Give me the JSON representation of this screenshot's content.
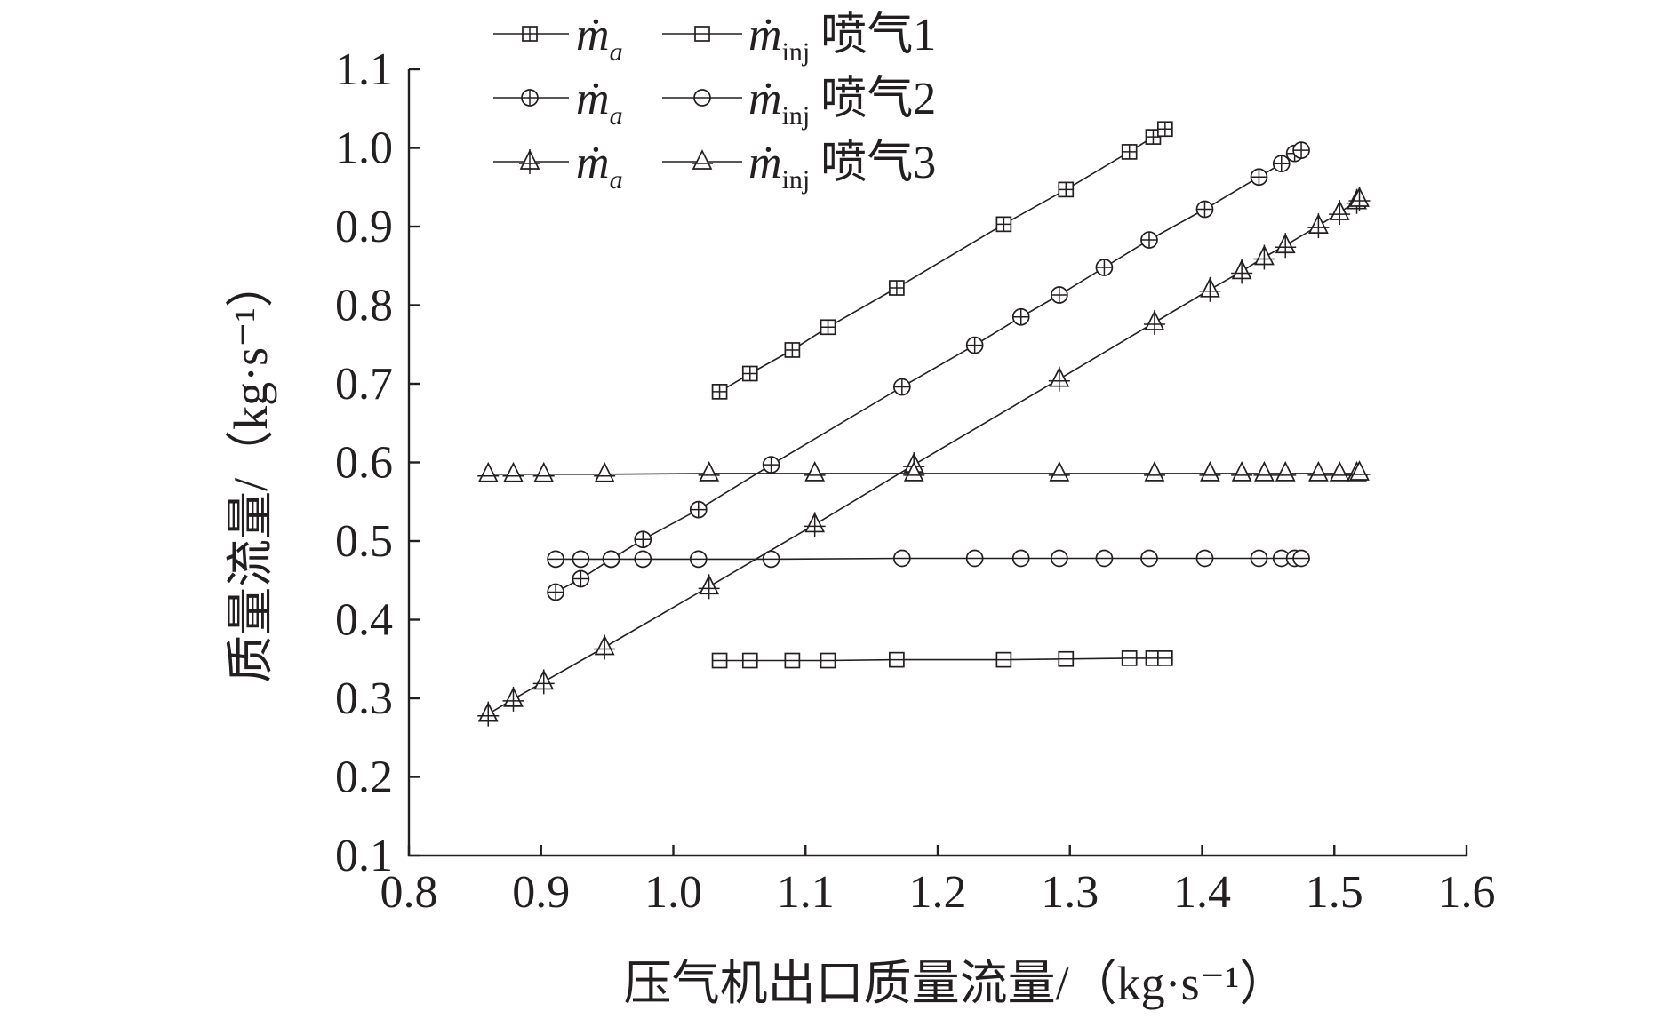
{
  "chart_data": {
    "type": "line",
    "xlabel": "压气机出口质量流量/（kg·s⁻¹）",
    "ylabel": "质量流量/（kg·s⁻¹）",
    "xlim": [
      0.8,
      1.6
    ],
    "ylim": [
      0.1,
      1.1
    ],
    "x_ticks": [
      "0.8",
      "0.9",
      "1.0",
      "1.1",
      "1.2",
      "1.3",
      "1.4",
      "1.5",
      "1.6"
    ],
    "y_ticks": [
      "0.1",
      "0.2",
      "0.3",
      "0.4",
      "0.5",
      "0.6",
      "0.7",
      "0.8",
      "0.9",
      "1.0",
      "1.1"
    ],
    "grid": false,
    "legend": {
      "position": "top-left",
      "columns": 2
    },
    "series": [
      {
        "name": "ṁa 喷气1",
        "marker": "square",
        "crossed": true,
        "points": [
          [
            1.035,
            0.69
          ],
          [
            1.058,
            0.713
          ],
          [
            1.09,
            0.743
          ],
          [
            1.117,
            0.772
          ],
          [
            1.169,
            0.822
          ],
          [
            1.25,
            0.903
          ],
          [
            1.297,
            0.947
          ],
          [
            1.345,
            0.995
          ],
          [
            1.363,
            1.014
          ],
          [
            1.372,
            1.024
          ]
        ]
      },
      {
        "name": "ṁinj 喷气1",
        "marker": "square",
        "crossed": false,
        "points": [
          [
            1.035,
            0.348
          ],
          [
            1.058,
            0.348
          ],
          [
            1.09,
            0.348
          ],
          [
            1.117,
            0.348
          ],
          [
            1.169,
            0.349
          ],
          [
            1.25,
            0.349
          ],
          [
            1.297,
            0.35
          ],
          [
            1.345,
            0.351
          ],
          [
            1.363,
            0.351
          ],
          [
            1.372,
            0.351
          ]
        ]
      },
      {
        "name": "ṁa 喷气2",
        "marker": "circle",
        "crossed": true,
        "points": [
          [
            0.911,
            0.435
          ],
          [
            0.93,
            0.452
          ],
          [
            0.953,
            0.477
          ],
          [
            0.977,
            0.502
          ],
          [
            1.019,
            0.54
          ],
          [
            1.074,
            0.597
          ],
          [
            1.173,
            0.696
          ],
          [
            1.228,
            0.749
          ],
          [
            1.263,
            0.785
          ],
          [
            1.292,
            0.813
          ],
          [
            1.326,
            0.848
          ],
          [
            1.36,
            0.883
          ],
          [
            1.402,
            0.922
          ],
          [
            1.443,
            0.963
          ],
          [
            1.46,
            0.98
          ],
          [
            1.47,
            0.993
          ],
          [
            1.475,
            0.997
          ]
        ]
      },
      {
        "name": "ṁinj 喷气2",
        "marker": "circle",
        "crossed": false,
        "points": [
          [
            0.911,
            0.477
          ],
          [
            0.93,
            0.477
          ],
          [
            0.953,
            0.477
          ],
          [
            0.977,
            0.477
          ],
          [
            1.019,
            0.477
          ],
          [
            1.074,
            0.477
          ],
          [
            1.173,
            0.478
          ],
          [
            1.228,
            0.478
          ],
          [
            1.263,
            0.478
          ],
          [
            1.292,
            0.478
          ],
          [
            1.326,
            0.478
          ],
          [
            1.36,
            0.478
          ],
          [
            1.402,
            0.478
          ],
          [
            1.443,
            0.478
          ],
          [
            1.46,
            0.478
          ],
          [
            1.47,
            0.478
          ],
          [
            1.475,
            0.478
          ]
        ]
      },
      {
        "name": "ṁa 喷气3",
        "marker": "triangle",
        "crossed": true,
        "points": [
          [
            0.86,
            0.28
          ],
          [
            0.879,
            0.299
          ],
          [
            0.902,
            0.321
          ],
          [
            0.948,
            0.365
          ],
          [
            1.027,
            0.442
          ],
          [
            1.107,
            0.521
          ],
          [
            1.182,
            0.597
          ],
          [
            1.292,
            0.706
          ],
          [
            1.364,
            0.778
          ],
          [
            1.406,
            0.82
          ],
          [
            1.43,
            0.843
          ],
          [
            1.447,
            0.861
          ],
          [
            1.463,
            0.876
          ],
          [
            1.488,
            0.901
          ],
          [
            1.504,
            0.918
          ],
          [
            1.517,
            0.932
          ],
          [
            1.519,
            0.935
          ]
        ]
      },
      {
        "name": "ṁinj 喷气3",
        "marker": "triangle",
        "crossed": false,
        "points": [
          [
            0.86,
            0.585
          ],
          [
            0.879,
            0.585
          ],
          [
            0.902,
            0.585
          ],
          [
            0.948,
            0.585
          ],
          [
            1.027,
            0.586
          ],
          [
            1.107,
            0.586
          ],
          [
            1.182,
            0.586
          ],
          [
            1.292,
            0.586
          ],
          [
            1.364,
            0.586
          ],
          [
            1.406,
            0.586
          ],
          [
            1.43,
            0.586
          ],
          [
            1.447,
            0.586
          ],
          [
            1.463,
            0.586
          ],
          [
            1.488,
            0.586
          ],
          [
            1.504,
            0.586
          ],
          [
            1.517,
            0.586
          ],
          [
            1.519,
            0.587
          ]
        ]
      }
    ]
  },
  "legend": {
    "rows": [
      {
        "left_sym": "ṁ",
        "left_sub": "a",
        "right_sym": "ṁ",
        "right_sub": "inj",
        "label": "喷气1"
      },
      {
        "left_sym": "ṁ",
        "left_sub": "a",
        "right_sym": "ṁ",
        "right_sub": "inj",
        "label": "喷气2"
      },
      {
        "left_sym": "ṁ",
        "left_sub": "a",
        "right_sym": "ṁ",
        "right_sub": "inj",
        "label": "喷气3"
      }
    ]
  }
}
